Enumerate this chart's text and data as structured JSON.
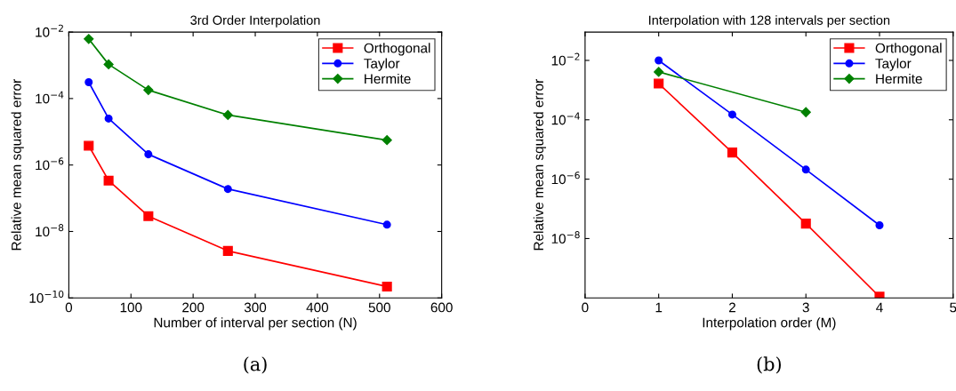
{
  "chart_data": [
    {
      "type": "line",
      "title": "3rd Order Interpolation",
      "xlabel": "Number of interval per section (N)",
      "ylabel": "Relative mean squared error",
      "log": "y",
      "grid": false,
      "legend": "top right",
      "annotations": [
        "(a)"
      ],
      "xlim": [
        0,
        600
      ],
      "xticks": [
        0,
        100,
        200,
        300,
        400,
        500,
        600
      ],
      "ylim": [
        1e-10,
        0.01
      ],
      "yticks": [
        {
          "value": 1e-10,
          "label": "10$^{−10}$"
        },
        {
          "value": 1e-08,
          "label": "10$^{−8}$"
        },
        {
          "value": 1e-06,
          "label": "10$^{−6}$"
        },
        {
          "value": 0.0001,
          "label": "10$^{−4}$"
        },
        {
          "value": 0.01,
          "label": "10$^{−2}$"
        }
      ],
      "x": [
        32,
        64,
        128,
        256,
        512
      ],
      "series": [
        {
          "name": "Orthogonal",
          "color": "#ff0000",
          "marker": "square",
          "values": [
            3.8e-06,
            3.4e-07,
            2.9e-08,
            2.6e-09,
            2.2e-10
          ]
        },
        {
          "name": "Taylor",
          "color": "#0000ff",
          "marker": "circle",
          "values": [
            0.00031,
            2.5e-05,
            2.1e-06,
            1.9e-07,
            1.6e-08
          ]
        },
        {
          "name": "Hermite",
          "color": "#008000",
          "marker": "diamond",
          "values": [
            0.0062,
            0.00107,
            0.00018,
            3.2e-05,
            5.6e-06
          ]
        }
      ]
    },
    {
      "type": "line",
      "title": "Interpolation with 128 intervals per section",
      "xlabel": "Interpolation order (M)",
      "ylabel": "Relative mean squared error",
      "log": "y",
      "grid": false,
      "legend": "top right",
      "annotations": [
        "(b)"
      ],
      "xlim": [
        0,
        5
      ],
      "xticks": [
        0,
        1,
        2,
        3,
        4,
        5
      ],
      "ylim": [
        1e-10,
        0.09
      ],
      "yticks": [
        {
          "value": 1e-08,
          "label": "10$^{−8}$"
        },
        {
          "value": 1e-06,
          "label": "10$^{−6}$"
        },
        {
          "value": 0.0001,
          "label": "10$^{−4}$"
        },
        {
          "value": 0.01,
          "label": "10$^{−2}$"
        }
      ],
      "series": [
        {
          "name": "Orthogonal",
          "color": "#ff0000",
          "marker": "square",
          "x": [
            1,
            2,
            3,
            4
          ],
          "values": [
            0.00166,
            7.9e-06,
            3.2e-08,
            1.1e-10
          ]
        },
        {
          "name": "Taylor",
          "color": "#0000ff",
          "marker": "circle",
          "x": [
            1,
            2,
            3,
            4
          ],
          "values": [
            0.01,
            0.00015,
            2.1e-06,
            2.8e-08
          ]
        },
        {
          "name": "Hermite",
          "color": "#008000",
          "marker": "diamond",
          "x": [
            1,
            3
          ],
          "values": [
            0.0041,
            0.00018
          ]
        }
      ]
    }
  ]
}
